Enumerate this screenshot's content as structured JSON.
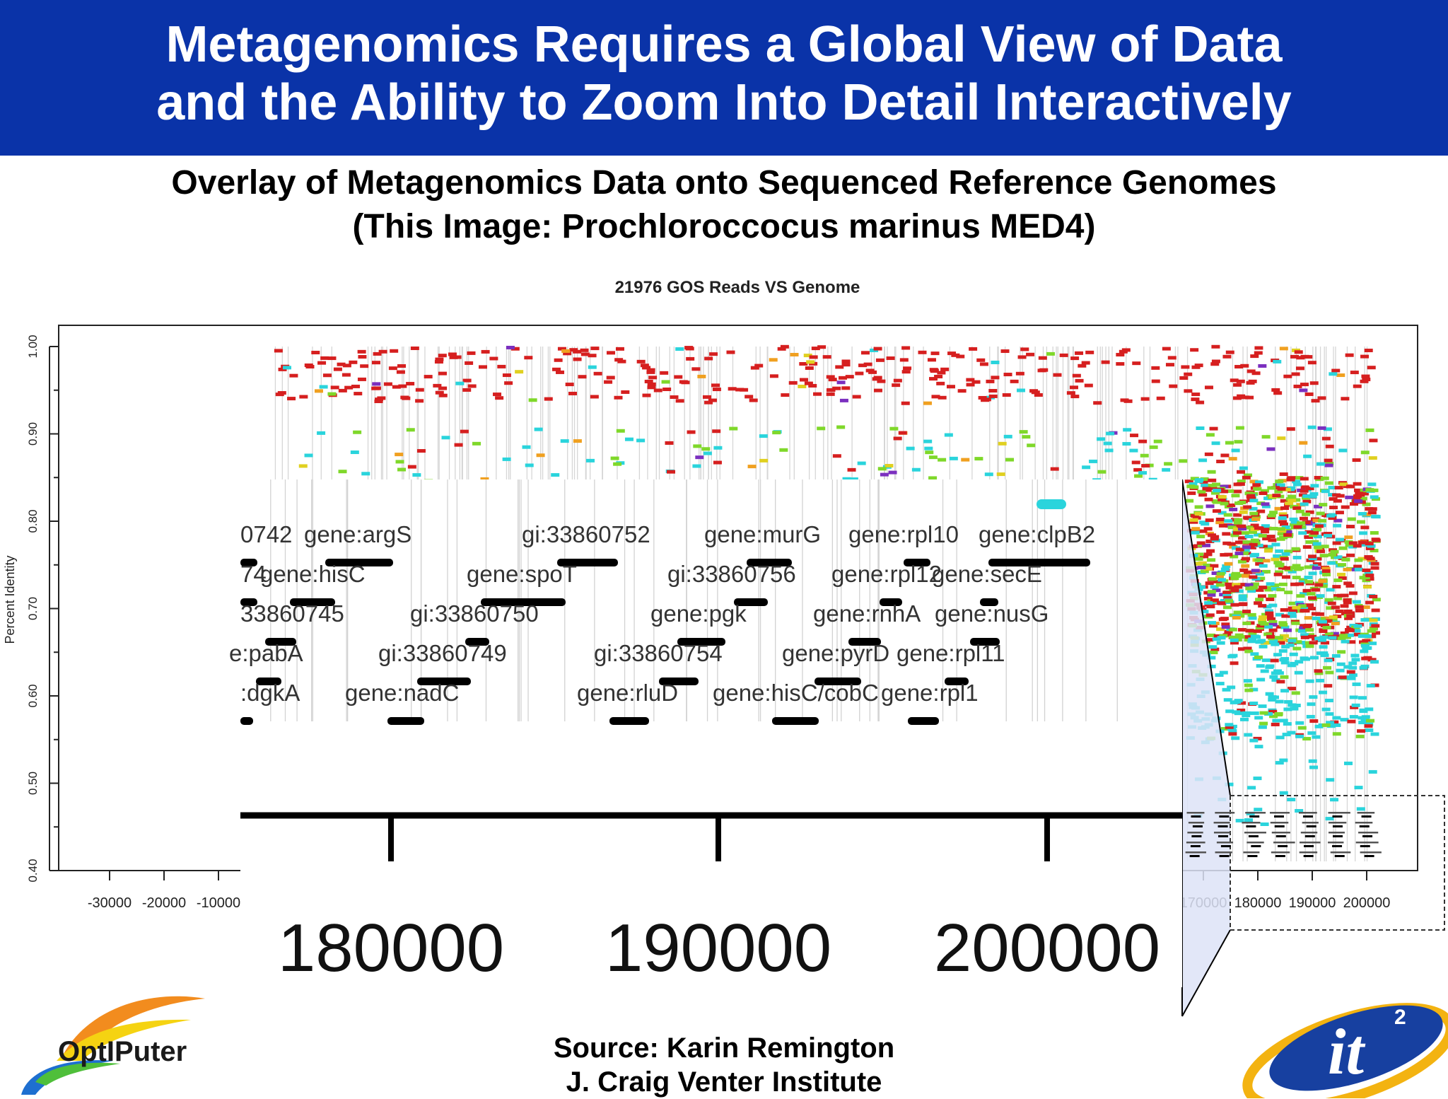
{
  "slide": {
    "title_line1": "Metagenomics Requires a Global View of Data",
    "title_line2": "and the Ability to Zoom Into Detail Interactively",
    "subtitle_line1": "Overlay of Metagenomics Data onto Sequenced Reference Genomes",
    "subtitle_line2": "(This Image: Prochloroccocus marinus MED4)",
    "source_line1": "Source: Karin Remington",
    "source_line2": "J. Craig Venter Institute",
    "logo_left_text": "OptIPuter",
    "logo_right_text": "it",
    "logo_right_sup": "2"
  },
  "colors": {
    "banner": "#0a33a8",
    "reads_high": "#d61f1f",
    "reads_mid": "#7fd82a",
    "reads_low": "#2ad4dc",
    "reads_other": "#f0a020",
    "zoom_fill": "#dde3f7"
  },
  "chart_data": {
    "type": "scatter",
    "title": "21976 GOS Reads VS Genome",
    "xlabel": "",
    "ylabel": "Percent Identity",
    "ylim": [
      0.4,
      1.0
    ],
    "yticks": [
      "0.40",
      "0.50",
      "0.60",
      "0.70",
      "0.80",
      "0.90",
      "1.00"
    ],
    "xticks_left": [
      "-30000",
      "-20000",
      "-10000"
    ],
    "xticks_right": [
      "170000",
      "180000",
      "190000",
      "200000"
    ],
    "grid": true,
    "legend": "none",
    "zoom_inset": {
      "xticks": [
        "180000",
        "190000",
        "200000"
      ],
      "genes": [
        {
          "label": "0742",
          "row": 1
        },
        {
          "label": "gene:argS",
          "row": 1
        },
        {
          "label": "gi:33860752",
          "row": 1
        },
        {
          "label": "gene:murG",
          "row": 1
        },
        {
          "label": "gene:rpl10",
          "row": 1
        },
        {
          "label": "gene:clpB2",
          "row": 1
        },
        {
          "label": "74",
          "row": 2
        },
        {
          "label": "gene:hisC",
          "row": 2
        },
        {
          "label": "gene:spoT",
          "row": 2
        },
        {
          "label": "gi:33860756",
          "row": 2
        },
        {
          "label": "gene:rpl12",
          "row": 2
        },
        {
          "label": "gene:secE",
          "row": 2
        },
        {
          "label": "33860745",
          "row": 3
        },
        {
          "label": "gi:33860750",
          "row": 3
        },
        {
          "label": "gene:pgk",
          "row": 3
        },
        {
          "label": "gene:rnhA",
          "row": 3
        },
        {
          "label": "gene:nusG",
          "row": 3
        },
        {
          "label": "e:pabA",
          "row": 4
        },
        {
          "label": "gi:33860749",
          "row": 4
        },
        {
          "label": "gi:33860754",
          "row": 4
        },
        {
          "label": "gene:pyrD",
          "row": 4
        },
        {
          "label": "gene:rpl11",
          "row": 4
        },
        {
          "label": ":dgkA",
          "row": 5
        },
        {
          "label": "gene:nadC",
          "row": 5
        },
        {
          "label": "gene:rluD",
          "row": 5
        },
        {
          "label": "gene:hisC/cobC",
          "row": 5
        },
        {
          "label": "gene:rpl1",
          "row": 5
        }
      ]
    }
  }
}
